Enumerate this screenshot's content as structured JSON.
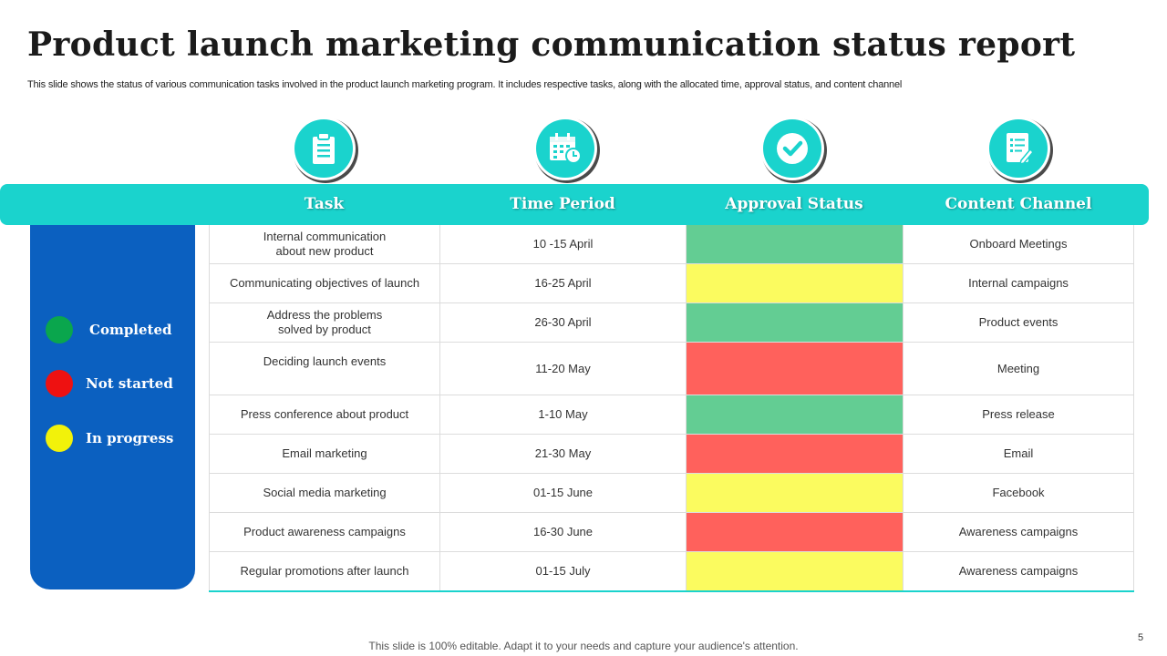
{
  "title": "Product launch marketing communication status report",
  "subtitle": "This slide shows the status of various communication tasks involved in the product launch marketing program. It includes respective tasks, along with the allocated time, approval status, and content channel",
  "legend": [
    {
      "label": "Completed",
      "color": "#0aa64d"
    },
    {
      "label": "Not started",
      "color": "#ee1111"
    },
    {
      "label": "In progress",
      "color": "#f2f20a"
    }
  ],
  "columns": [
    {
      "label": "Task",
      "icon": "clipboard-icon"
    },
    {
      "label": "Time Period",
      "icon": "calendar-clock-icon"
    },
    {
      "label": "Approval Status",
      "icon": "check-circle-icon"
    },
    {
      "label": "Content Channel",
      "icon": "document-edit-icon"
    }
  ],
  "status_colors": {
    "Completed": "#63cd93",
    "Not started": "#ff615c",
    "In progress": "#fbfb5f"
  },
  "rows": [
    {
      "task": "Internal communication\nabout new product",
      "period": "10 -15 April",
      "status": "Completed",
      "channel": "Onboard Meetings"
    },
    {
      "task": "Communicating objectives of launch",
      "period": "16-25 April",
      "status": "In progress",
      "channel": "Internal campaigns"
    },
    {
      "task": "Address the problems\nsolved by product",
      "period": "26-30 April",
      "status": "Completed",
      "channel": "Product events"
    },
    {
      "task": "Deciding launch events",
      "period": "11-20 May",
      "status": "Not started",
      "channel": "Meeting"
    },
    {
      "task": "Press conference about product",
      "period": "1-10 May",
      "status": "Completed",
      "channel": "Press release"
    },
    {
      "task": "Email marketing",
      "period": "21-30 May",
      "status": "Not started",
      "channel": "Email"
    },
    {
      "task": "Social media marketing",
      "period": "01-15 June",
      "status": "In progress",
      "channel": "Facebook"
    },
    {
      "task": "Product awareness campaigns",
      "period": "16-30 June",
      "status": "Not started",
      "channel": "Awareness campaigns"
    },
    {
      "task": "Regular promotions after launch",
      "period": "01-15 July",
      "status": "In progress",
      "channel": "Awareness campaigns"
    }
  ],
  "page_number": "5",
  "footer": "This slide is 100% editable. Adapt it to your needs and capture your audience's attention."
}
